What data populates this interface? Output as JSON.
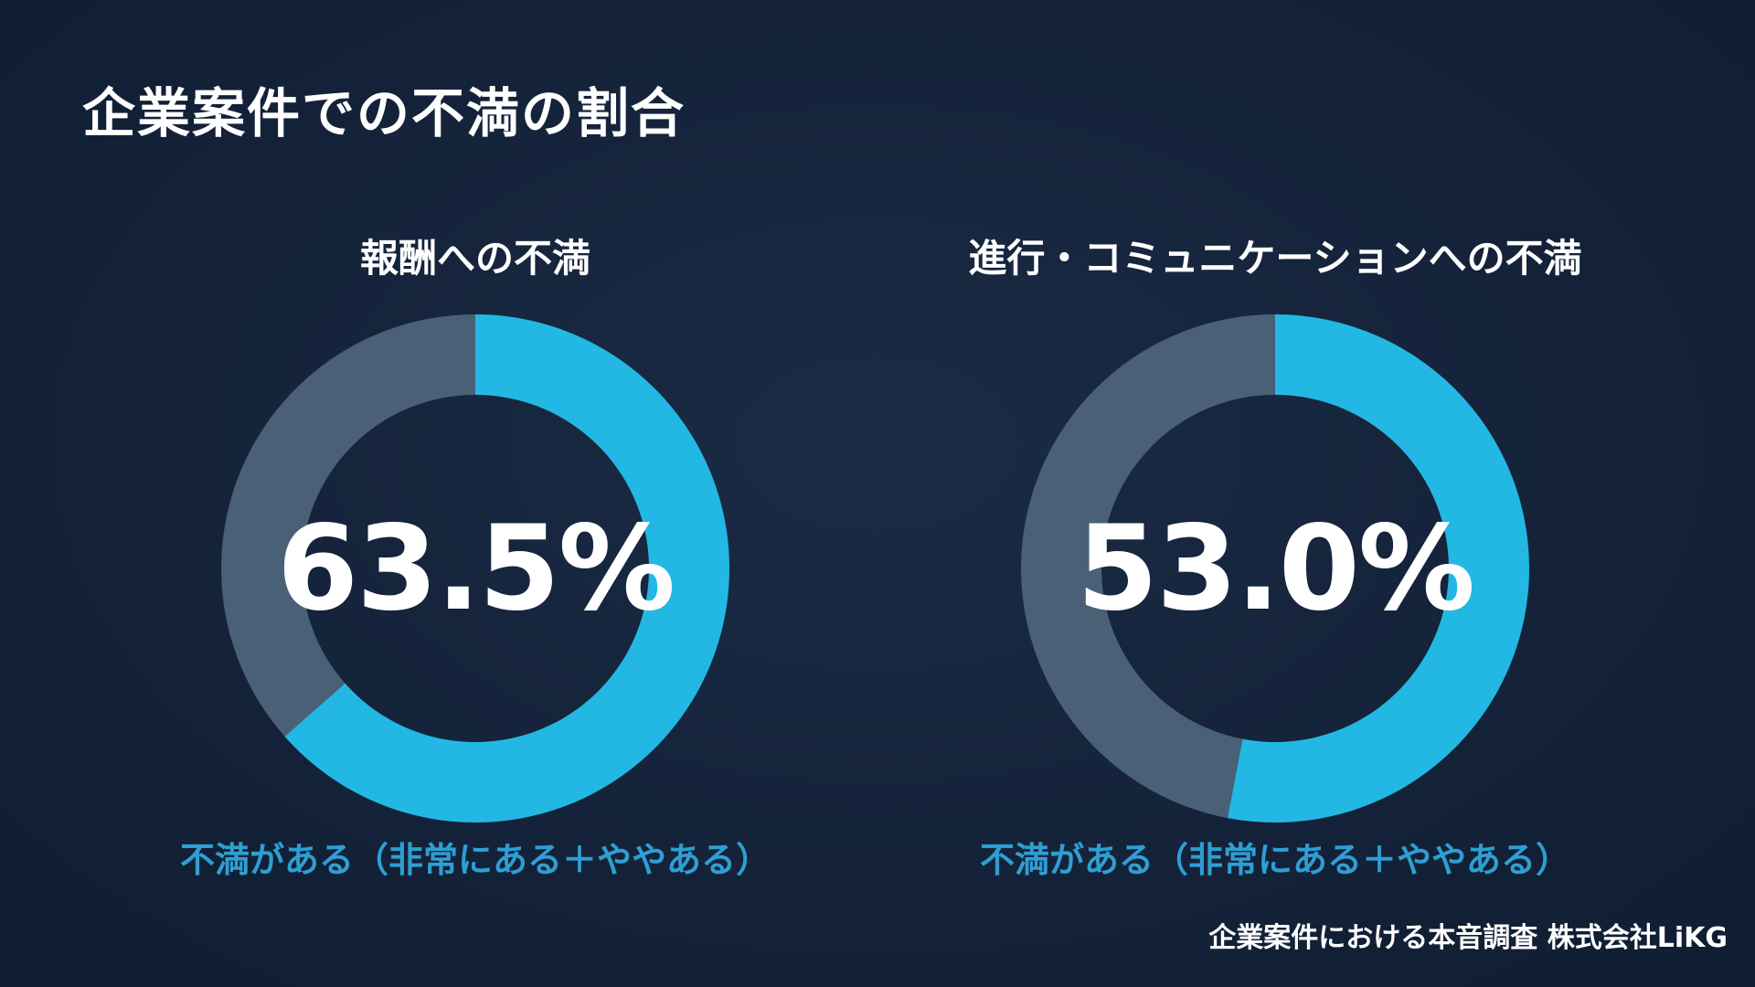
{
  "title": "企業案件での不満の割合",
  "source": "企業案件における本音調査  株式会社LiKG",
  "colors": {
    "background": "#14233a",
    "accent": "#22b8e3",
    "remainder": "#4a6077",
    "note": "#2e9fd2",
    "text": "#ffffff"
  },
  "chart_data": [
    {
      "type": "pie",
      "title": "報酬への不満",
      "value_label": "63.5%",
      "values": [
        63.5,
        36.5
      ],
      "note": "不満がある（非常にある＋ややある）"
    },
    {
      "type": "pie",
      "title": "進行・コミュニケーションへの不満",
      "value_label": "53.0%",
      "values": [
        53.0,
        47.0
      ],
      "note": "不満がある（非常にある＋ややある）"
    }
  ]
}
